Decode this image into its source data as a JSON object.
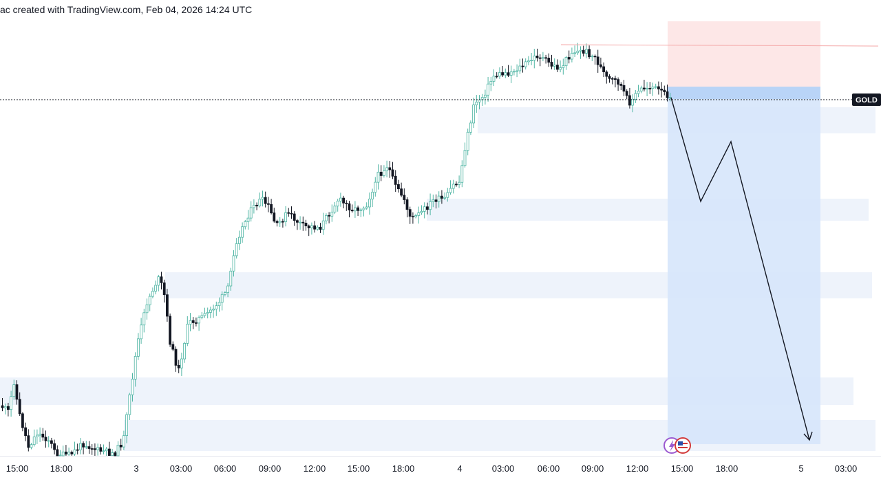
{
  "header": {
    "text": "ac created with TradingView.com, Feb 04, 2026 14:24 UTC"
  },
  "symbol_tag": "GOLD",
  "colors": {
    "bull": "#4fb5a4",
    "bear": "#131722",
    "zone_fill": "#eef3fb",
    "risk_fill": "#fde7e7",
    "reward_fill": "#d6e6fb",
    "entry_bar": "#b9d4f7",
    "stop_line": "#f4a6a6",
    "price_line": "#131722",
    "tag_bg": "#131722"
  },
  "chart_data": {
    "type": "candlestick",
    "title": "",
    "xlabel": "",
    "ylabel": "",
    "x_ticks": [
      "15:00",
      "18:00",
      "3",
      "03:00",
      "06:00",
      "09:00",
      "12:00",
      "15:00",
      "18:00",
      "4",
      "03:00",
      "06:00",
      "09:00",
      "12:00",
      "15:00",
      "18:00",
      "5",
      "03:00"
    ],
    "grid": false,
    "legend": "none",
    "projection": "bearish path drawn from the last bar down toward the target"
  }
}
